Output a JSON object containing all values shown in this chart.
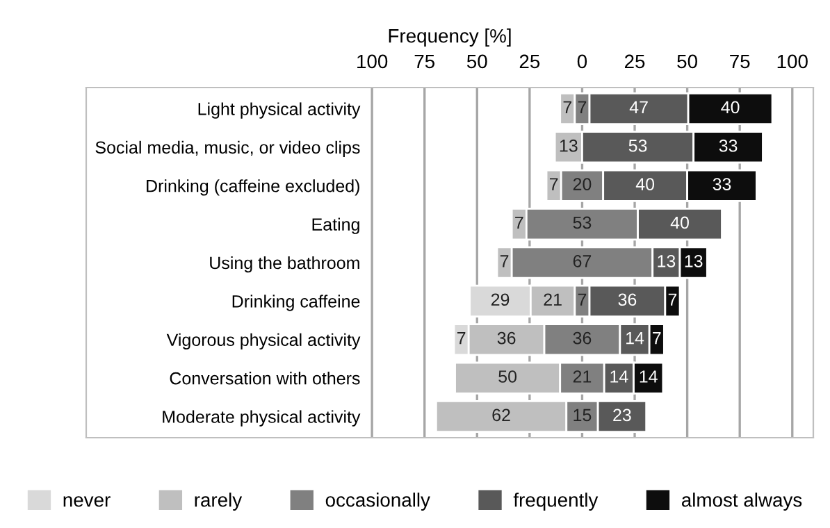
{
  "chart_data": {
    "type": "bar",
    "orientation": "horizontal",
    "xlabel": "Frequency [%]",
    "categories": [
      "Light physical activity",
      "Social media, music, or video clips",
      "Drinking (caffeine excluded)",
      "Eating",
      "Using the bathroom",
      "Drinking caffeine",
      "Vigorous physical activity",
      "Conversation with others",
      "Moderate physical activity"
    ],
    "series": [
      {
        "name": "never",
        "color": "#d9d9d9",
        "values": [
          null,
          null,
          null,
          null,
          null,
          29,
          7,
          null,
          null
        ],
        "base": [
          null,
          null,
          null,
          null,
          null,
          -53.5,
          -61,
          null,
          null
        ]
      },
      {
        "name": "rarely",
        "color": "#bfbfbf",
        "values": [
          7,
          13,
          7,
          7,
          7,
          21,
          36,
          50,
          62
        ],
        "base": [
          -10.5,
          -13,
          -17,
          -33.5,
          -40.5,
          -24.5,
          -54,
          -60.5,
          -69.5
        ]
      },
      {
        "name": "occasionally",
        "color": "#808080",
        "values": [
          7,
          null,
          20,
          53,
          67,
          7,
          36,
          21,
          15
        ],
        "base": [
          -3.5,
          null,
          -10,
          -26.5,
          -33.5,
          -3.5,
          -18,
          -10.5,
          -7.5
        ]
      },
      {
        "name": "frequently",
        "color": "#595959",
        "values": [
          47,
          53,
          40,
          40,
          13,
          36,
          14,
          14,
          23
        ],
        "base": [
          3.5,
          0,
          10,
          26.5,
          33.5,
          3.5,
          18,
          10.5,
          7.5
        ]
      },
      {
        "name": "almost always",
        "color": "#0d0d0d",
        "values": [
          40,
          33,
          33,
          null,
          13,
          7,
          7,
          14,
          null
        ],
        "base": [
          50.5,
          53,
          50,
          null,
          46.5,
          39.5,
          32,
          24.5,
          null
        ]
      }
    ],
    "xlim": [
      -236,
      110
    ],
    "xticks": [
      {
        "value": -100,
        "label": "100"
      },
      {
        "value": -75,
        "label": "75"
      },
      {
        "value": -50,
        "label": "50"
      },
      {
        "value": -25,
        "label": "25"
      },
      0,
      25,
      50,
      75,
      100
    ],
    "grid": "x",
    "legend": "bottom",
    "data_labels": true
  }
}
